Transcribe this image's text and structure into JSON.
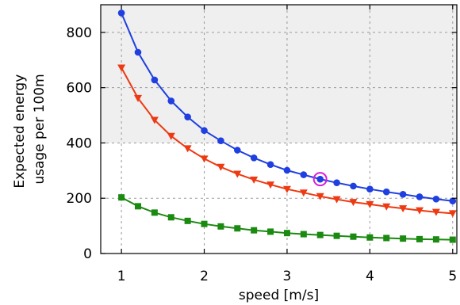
{
  "chart_data": {
    "type": "line",
    "xlabel": "speed [m/s]",
    "ylabel_lines": [
      "Expected energy",
      "usage per 100m"
    ],
    "xlim": [
      0.75,
      5.05
    ],
    "ylim": [
      0,
      900
    ],
    "x_ticks": [
      1,
      2,
      3,
      4,
      5
    ],
    "y_ticks": [
      0,
      200,
      400,
      600,
      800
    ],
    "grid": true,
    "shaded_region": {
      "y_from": 400,
      "y_to": 900,
      "color": "#efefef"
    },
    "x": [
      1.0,
      1.2,
      1.4,
      1.6,
      1.8,
      2.0,
      2.2,
      2.4,
      2.6,
      2.8,
      3.0,
      3.2,
      3.4,
      3.6,
      3.8,
      4.0,
      4.2,
      4.4,
      4.6,
      4.8,
      5.0
    ],
    "series": [
      {
        "color": "#1f3fe0",
        "marker": "circle",
        "values": [
          870,
          728,
          628,
          552,
          494,
          445,
          408,
          374,
          346,
          322,
          301,
          285,
          269,
          256,
          244,
          233,
          223,
          214,
          205,
          197,
          190
        ]
      },
      {
        "color": "#ee3a12",
        "marker": "triangle-down",
        "values": [
          672,
          562,
          483,
          425,
          380,
          343,
          313,
          288,
          267,
          249,
          233,
          220,
          207,
          196,
          186,
          178,
          170,
          163,
          156,
          150,
          145
        ]
      },
      {
        "color": "#1b8a10",
        "marker": "square",
        "values": [
          203,
          171,
          148,
          131,
          118,
          107,
          98,
          91,
          84,
          79,
          74,
          70,
          67,
          64,
          61,
          58,
          56,
          54,
          52,
          51,
          50
        ]
      }
    ],
    "highlight": {
      "x": 3.4,
      "y": 269,
      "color": "#d81ed8",
      "marker": "open-circle"
    }
  }
}
